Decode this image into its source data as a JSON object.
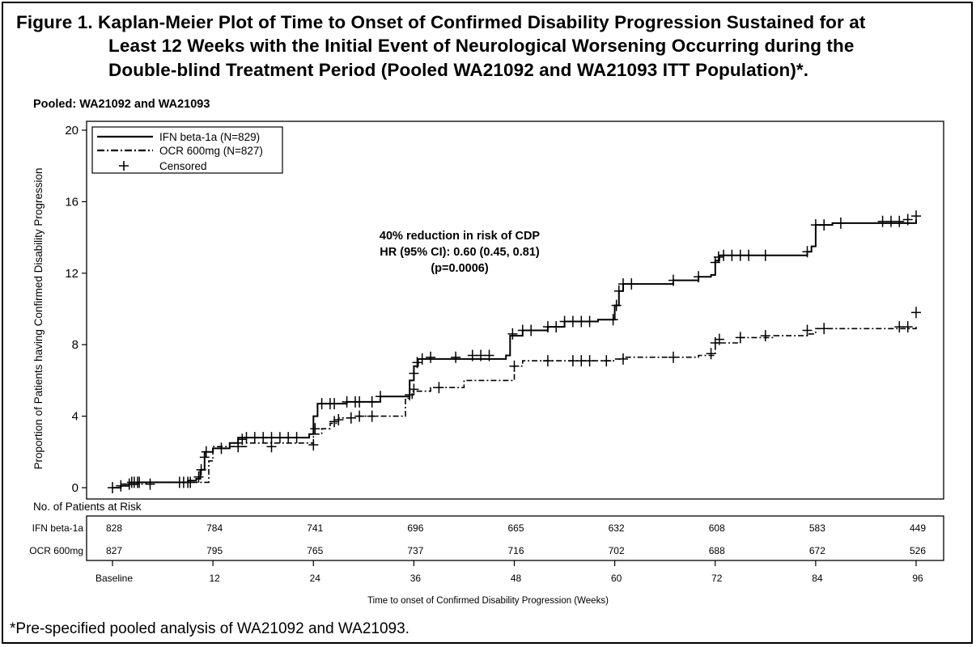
{
  "figure": {
    "title_lines": [
      "Figure 1. Kaplan-Meier Plot of Time to Onset of Confirmed Disability Progression Sustained for at",
      "Least 12 Weeks with the Initial Event of Neurological Worsening Occurring during the",
      "Double-blind Treatment Period (Pooled WA21092 and WA21093 ITT Population)*."
    ],
    "subtitle": "Pooled: WA21092 and WA21093",
    "footnote": "*Pre-specified pooled analysis of WA21092 and WA21093."
  },
  "chart_data": {
    "type": "line",
    "xlabel": "Time to onset of Confirmed Disability Progression (Weeks)",
    "ylabel": "Proportion of Patients having Confirmed Disability Progression",
    "xlim": [
      0,
      96
    ],
    "ylim": [
      0,
      20
    ],
    "yticks": [
      "0",
      "4",
      "8",
      "12",
      "16",
      "20"
    ],
    "x_tick_values": [
      0,
      12,
      24,
      36,
      48,
      60,
      72,
      84,
      96
    ],
    "x_tick_labels": [
      "Baseline",
      "12",
      "24",
      "36",
      "48",
      "60",
      "72",
      "84",
      "96"
    ],
    "grid": false,
    "legend_position": "top-left",
    "legend": [
      {
        "label": "IFN beta-1a (N=829)",
        "style": "solid"
      },
      {
        "label": "OCR 600mg (N=827)",
        "style": "dash-dot"
      },
      {
        "label": "Censored",
        "style": "marker"
      }
    ],
    "annotation": [
      "40% reduction in risk of CDP",
      "HR (95% CI): 0.60 (0.45, 0.81)",
      "(p=0.0006)"
    ],
    "series": [
      {
        "name": "IFN beta-1a (N=829)",
        "steps": [
          [
            0,
            0
          ],
          [
            1,
            0.1
          ],
          [
            2,
            0.2
          ],
          [
            3,
            0.3
          ],
          [
            8,
            0.3
          ],
          [
            9,
            0.4
          ],
          [
            10,
            0.5
          ],
          [
            10.5,
            1
          ],
          [
            11,
            2
          ],
          [
            12,
            2.2
          ],
          [
            14,
            2.5
          ],
          [
            15,
            2.8
          ],
          [
            23.5,
            3
          ],
          [
            24,
            4
          ],
          [
            24.5,
            4.7
          ],
          [
            28,
            4.8
          ],
          [
            32,
            5.1
          ],
          [
            35,
            5.1
          ],
          [
            35.5,
            6
          ],
          [
            36,
            6.8
          ],
          [
            36.5,
            7.2
          ],
          [
            47,
            7.4
          ],
          [
            47.5,
            8.5
          ],
          [
            49,
            8.8
          ],
          [
            52,
            9
          ],
          [
            54,
            9.3
          ],
          [
            58,
            9.4
          ],
          [
            59.5,
            9.4
          ],
          [
            60,
            10.2
          ],
          [
            60.5,
            11
          ],
          [
            61,
            11.4
          ],
          [
            67,
            11.6
          ],
          [
            70,
            11.8
          ],
          [
            71.5,
            11.9
          ],
          [
            72,
            12.7
          ],
          [
            72.5,
            13
          ],
          [
            83,
            13.2
          ],
          [
            83.5,
            13.5
          ],
          [
            84,
            14.7
          ],
          [
            86,
            14.8
          ],
          [
            96,
            15
          ]
        ],
        "censored": [
          [
            0,
            0
          ],
          [
            1,
            0.1
          ],
          [
            2,
            0.2
          ],
          [
            2.3,
            0.3
          ],
          [
            2.6,
            0.3
          ],
          [
            3,
            0.3
          ],
          [
            3.2,
            0.3
          ],
          [
            4.5,
            0.2
          ],
          [
            8,
            0.3
          ],
          [
            8.5,
            0.3
          ],
          [
            9,
            0.3
          ],
          [
            9.3,
            0.3
          ],
          [
            10.3,
            0.6
          ],
          [
            10.6,
            1
          ],
          [
            11,
            1.7
          ],
          [
            11.2,
            2
          ],
          [
            13,
            2.2
          ],
          [
            15,
            2.5
          ],
          [
            15.5,
            2.7
          ],
          [
            16,
            2.8
          ],
          [
            17,
            2.8
          ],
          [
            18,
            2.8
          ],
          [
            19,
            2.8
          ],
          [
            20,
            2.8
          ],
          [
            21,
            2.8
          ],
          [
            22,
            2.8
          ],
          [
            24.2,
            3.3
          ],
          [
            25,
            4.7
          ],
          [
            26,
            4.7
          ],
          [
            26.5,
            4.7
          ],
          [
            28,
            4.8
          ],
          [
            29,
            4.8
          ],
          [
            29.5,
            4.8
          ],
          [
            31,
            4.8
          ],
          [
            32,
            5.1
          ],
          [
            36,
            6.4
          ],
          [
            36.4,
            7
          ],
          [
            37,
            7.2
          ],
          [
            38,
            7.3
          ],
          [
            41,
            7.3
          ],
          [
            43,
            7.4
          ],
          [
            44,
            7.4
          ],
          [
            45,
            7.4
          ],
          [
            47.8,
            8.6
          ],
          [
            49,
            8.8
          ],
          [
            50,
            8.8
          ],
          [
            52,
            9
          ],
          [
            53,
            9
          ],
          [
            54,
            9.3
          ],
          [
            55,
            9.3
          ],
          [
            56,
            9.3
          ],
          [
            57,
            9.3
          ],
          [
            59.8,
            9.4
          ],
          [
            60.2,
            10.2
          ],
          [
            60.5,
            11
          ],
          [
            61,
            11.4
          ],
          [
            62,
            11.4
          ],
          [
            67,
            11.6
          ],
          [
            70,
            11.8
          ],
          [
            72,
            12.6
          ],
          [
            72.4,
            12.9
          ],
          [
            73,
            13
          ],
          [
            74,
            13
          ],
          [
            75,
            13
          ],
          [
            76,
            13
          ],
          [
            78,
            13
          ],
          [
            83,
            13.2
          ],
          [
            84,
            14.7
          ],
          [
            85,
            14.7
          ],
          [
            87,
            14.8
          ],
          [
            92,
            14.9
          ],
          [
            93,
            14.9
          ],
          [
            94,
            14.9
          ],
          [
            95,
            15
          ],
          [
            96,
            15.2
          ]
        ]
      },
      {
        "name": "OCR 600mg (N=827)",
        "steps": [
          [
            0,
            0
          ],
          [
            1,
            0.2
          ],
          [
            4,
            0.3
          ],
          [
            11,
            0.3
          ],
          [
            11.5,
            1.5
          ],
          [
            12,
            2.3
          ],
          [
            15,
            2.3
          ],
          [
            16,
            2.5
          ],
          [
            23.5,
            2.5
          ],
          [
            24,
            3
          ],
          [
            25,
            3.3
          ],
          [
            26,
            3.6
          ],
          [
            27,
            3.9
          ],
          [
            29,
            4
          ],
          [
            34,
            4
          ],
          [
            35,
            5
          ],
          [
            35.8,
            5.4
          ],
          [
            38,
            5.6
          ],
          [
            42,
            6
          ],
          [
            47.5,
            6
          ],
          [
            48,
            6.8
          ],
          [
            49,
            7.1
          ],
          [
            60,
            7.2
          ],
          [
            61,
            7.3
          ],
          [
            70,
            7.4
          ],
          [
            71.5,
            7.4
          ],
          [
            72,
            8.1
          ],
          [
            75,
            8.4
          ],
          [
            79,
            8.5
          ],
          [
            83,
            8.6
          ],
          [
            84,
            8.9
          ],
          [
            96,
            9
          ]
        ],
        "censored": [
          [
            15,
            2.3
          ],
          [
            19,
            2.3
          ],
          [
            24,
            2.4
          ],
          [
            26.5,
            3.7
          ],
          [
            27,
            3.8
          ],
          [
            28.5,
            3.9
          ],
          [
            29.5,
            4
          ],
          [
            31,
            4
          ],
          [
            35.5,
            5.2
          ],
          [
            36,
            5.5
          ],
          [
            39,
            5.6
          ],
          [
            48,
            6.8
          ],
          [
            52,
            7.1
          ],
          [
            55,
            7.1
          ],
          [
            56,
            7.1
          ],
          [
            57,
            7.1
          ],
          [
            59,
            7.1
          ],
          [
            61,
            7.2
          ],
          [
            67,
            7.3
          ],
          [
            71.5,
            7.5
          ],
          [
            72,
            8.1
          ],
          [
            72.5,
            8.3
          ],
          [
            75,
            8.4
          ],
          [
            78,
            8.5
          ],
          [
            83,
            8.8
          ],
          [
            85,
            8.9
          ],
          [
            94,
            9
          ],
          [
            95,
            9
          ],
          [
            96,
            9.8
          ]
        ]
      }
    ]
  },
  "risk_table": {
    "title": "No. of Patients at Risk",
    "rows": [
      {
        "label": "IFN beta-1a",
        "values": [
          "828",
          "784",
          "741",
          "696",
          "665",
          "632",
          "608",
          "583",
          "449"
        ]
      },
      {
        "label": "OCR 600mg",
        "values": [
          "827",
          "795",
          "765",
          "737",
          "716",
          "702",
          "688",
          "672",
          "526"
        ]
      }
    ]
  }
}
